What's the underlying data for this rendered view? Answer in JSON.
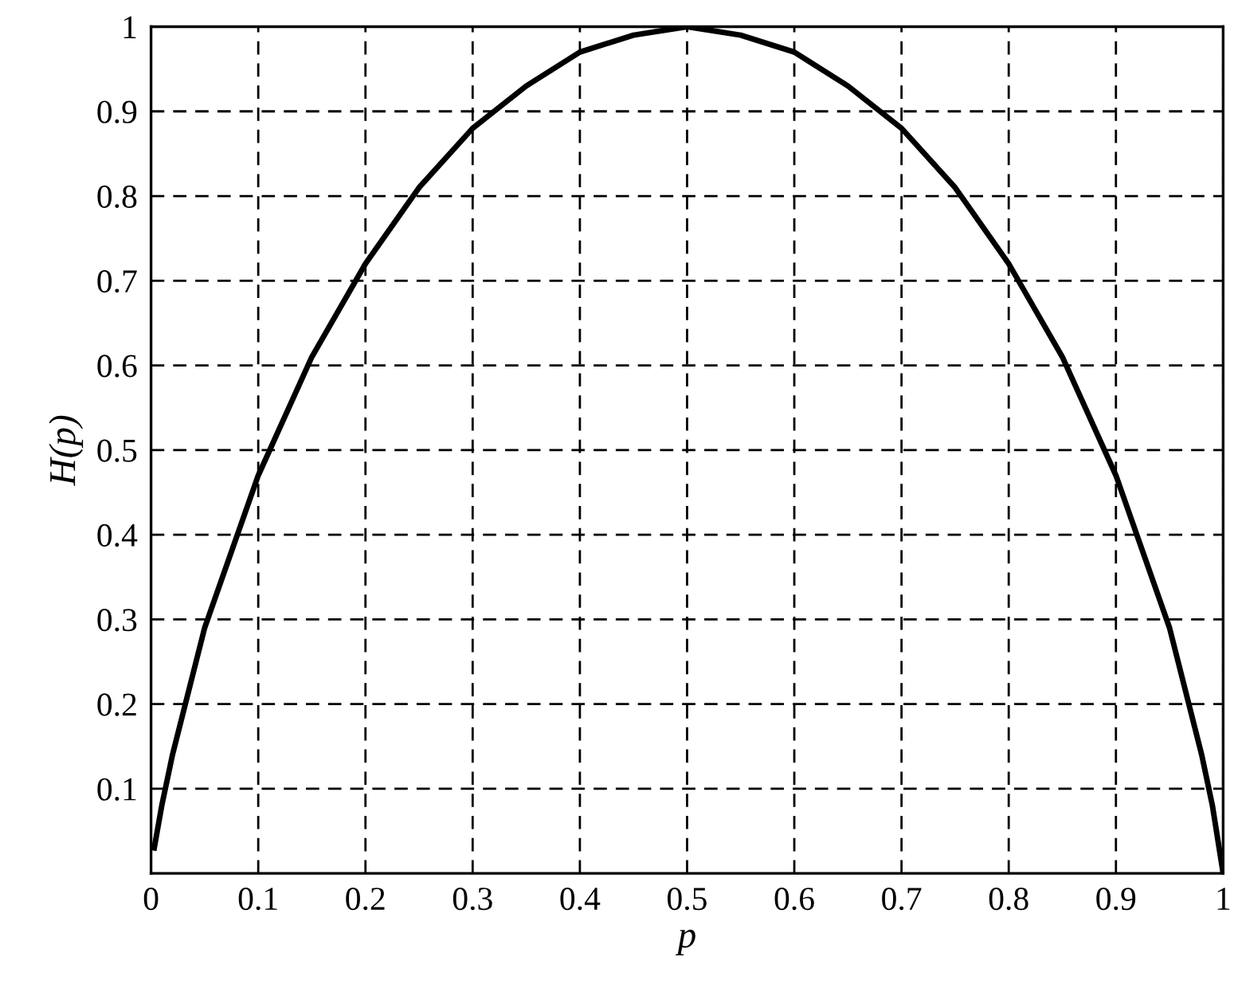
{
  "chart_data": {
    "type": "line",
    "xlabel": "p",
    "ylabel": "H(p)",
    "x": [
      0.003,
      0.01,
      0.02,
      0.05,
      0.1,
      0.15,
      0.2,
      0.25,
      0.3,
      0.35,
      0.4,
      0.45,
      0.5,
      0.55,
      0.6,
      0.65,
      0.7,
      0.75,
      0.8,
      0.85,
      0.9,
      0.95,
      0.98,
      0.99,
      1
    ],
    "series": [
      {
        "color": "#000000",
        "values": [
          0.03,
          0.08,
          0.14,
          0.29,
          0.47,
          0.61,
          0.72,
          0.81,
          0.88,
          0.93,
          0.97,
          0.99,
          1,
          0.99,
          0.97,
          0.93,
          0.88,
          0.81,
          0.72,
          0.61,
          0.47,
          0.29,
          0.14,
          0.08,
          0
        ]
      }
    ],
    "xlim": [
      0,
      1
    ],
    "ylim": [
      0,
      1
    ],
    "xticks": [
      0,
      0.1,
      0.2,
      0.3,
      0.4,
      0.5,
      0.6,
      0.7,
      0.8,
      0.9,
      1
    ],
    "yticks": [
      0.1,
      0.2,
      0.3,
      0.4,
      0.5,
      0.6,
      0.7,
      0.8,
      0.9,
      1
    ],
    "grid": true,
    "legend": false
  }
}
